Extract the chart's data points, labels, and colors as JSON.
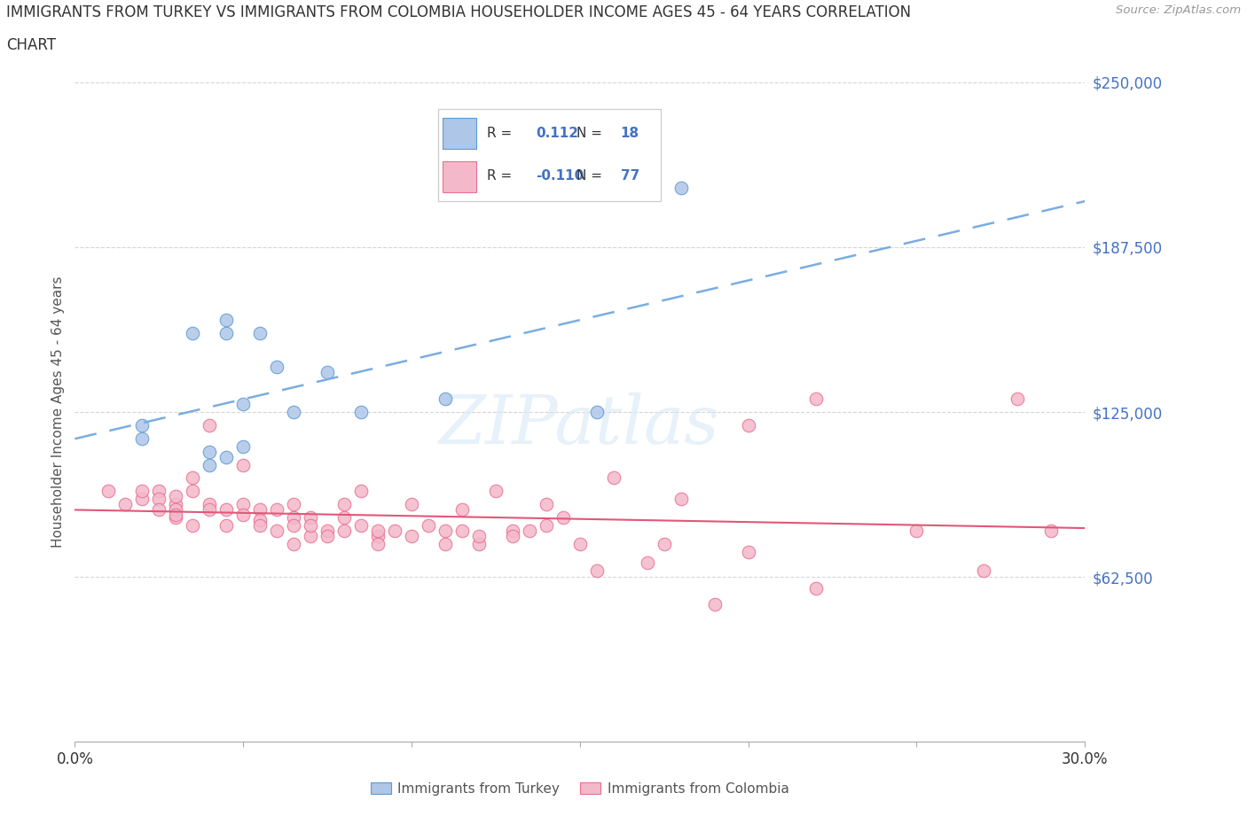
{
  "title_line1": "IMMIGRANTS FROM TURKEY VS IMMIGRANTS FROM COLOMBIA HOUSEHOLDER INCOME AGES 45 - 64 YEARS CORRELATION",
  "title_line2": "CHART",
  "source": "Source: ZipAtlas.com",
  "ylabel": "Householder Income Ages 45 - 64 years",
  "turkey_R": "0.112",
  "turkey_N": "18",
  "colombia_R": "-0.110",
  "colombia_N": "77",
  "turkey_color": "#aec6e8",
  "turkey_color_dark": "#5b9bd5",
  "colombia_color": "#f4b8cb",
  "colombia_color_dark": "#e87090",
  "trend_turkey_color": "#7aade0",
  "trend_colombia_color": "#e05878",
  "xlim": [
    0.0,
    0.3
  ],
  "ylim": [
    0,
    250000
  ],
  "yticks": [
    0,
    62500,
    125000,
    187500,
    250000
  ],
  "ytick_labels": [
    "",
    "$62,500",
    "$125,000",
    "$187,500",
    "$250,000"
  ],
  "xticks": [
    0.0,
    0.05,
    0.1,
    0.15,
    0.2,
    0.25,
    0.3
  ],
  "xtick_labels": [
    "0.0%",
    "",
    "",
    "",
    "",
    "",
    "30.0%"
  ],
  "watermark": "ZIPatlas",
  "turkey_scatter_x": [
    0.02,
    0.02,
    0.035,
    0.04,
    0.04,
    0.045,
    0.045,
    0.045,
    0.05,
    0.05,
    0.055,
    0.06,
    0.065,
    0.075,
    0.085,
    0.11,
    0.155,
    0.18
  ],
  "turkey_scatter_y": [
    115000,
    120000,
    155000,
    105000,
    110000,
    155000,
    160000,
    108000,
    128000,
    112000,
    155000,
    142000,
    125000,
    140000,
    125000,
    130000,
    125000,
    210000
  ],
  "colombia_scatter_x": [
    0.01,
    0.015,
    0.02,
    0.02,
    0.025,
    0.025,
    0.025,
    0.03,
    0.03,
    0.03,
    0.03,
    0.03,
    0.035,
    0.035,
    0.035,
    0.04,
    0.04,
    0.04,
    0.045,
    0.045,
    0.05,
    0.05,
    0.05,
    0.055,
    0.055,
    0.055,
    0.06,
    0.06,
    0.065,
    0.065,
    0.065,
    0.065,
    0.07,
    0.07,
    0.07,
    0.075,
    0.075,
    0.08,
    0.08,
    0.08,
    0.085,
    0.085,
    0.09,
    0.09,
    0.09,
    0.095,
    0.1,
    0.1,
    0.105,
    0.11,
    0.11,
    0.115,
    0.115,
    0.12,
    0.12,
    0.125,
    0.13,
    0.13,
    0.135,
    0.14,
    0.14,
    0.145,
    0.15,
    0.155,
    0.16,
    0.17,
    0.175,
    0.18,
    0.19,
    0.2,
    0.2,
    0.22,
    0.22,
    0.25,
    0.27,
    0.28,
    0.29
  ],
  "colombia_scatter_y": [
    95000,
    90000,
    92000,
    95000,
    95000,
    92000,
    88000,
    90000,
    85000,
    93000,
    88000,
    86000,
    100000,
    95000,
    82000,
    90000,
    88000,
    120000,
    88000,
    82000,
    105000,
    90000,
    86000,
    88000,
    84000,
    82000,
    88000,
    80000,
    75000,
    85000,
    90000,
    82000,
    78000,
    85000,
    82000,
    80000,
    78000,
    85000,
    80000,
    90000,
    82000,
    95000,
    78000,
    80000,
    75000,
    80000,
    90000,
    78000,
    82000,
    80000,
    75000,
    88000,
    80000,
    75000,
    78000,
    95000,
    80000,
    78000,
    80000,
    82000,
    90000,
    85000,
    75000,
    65000,
    100000,
    68000,
    75000,
    92000,
    52000,
    72000,
    120000,
    58000,
    130000,
    80000,
    65000,
    130000,
    80000
  ]
}
